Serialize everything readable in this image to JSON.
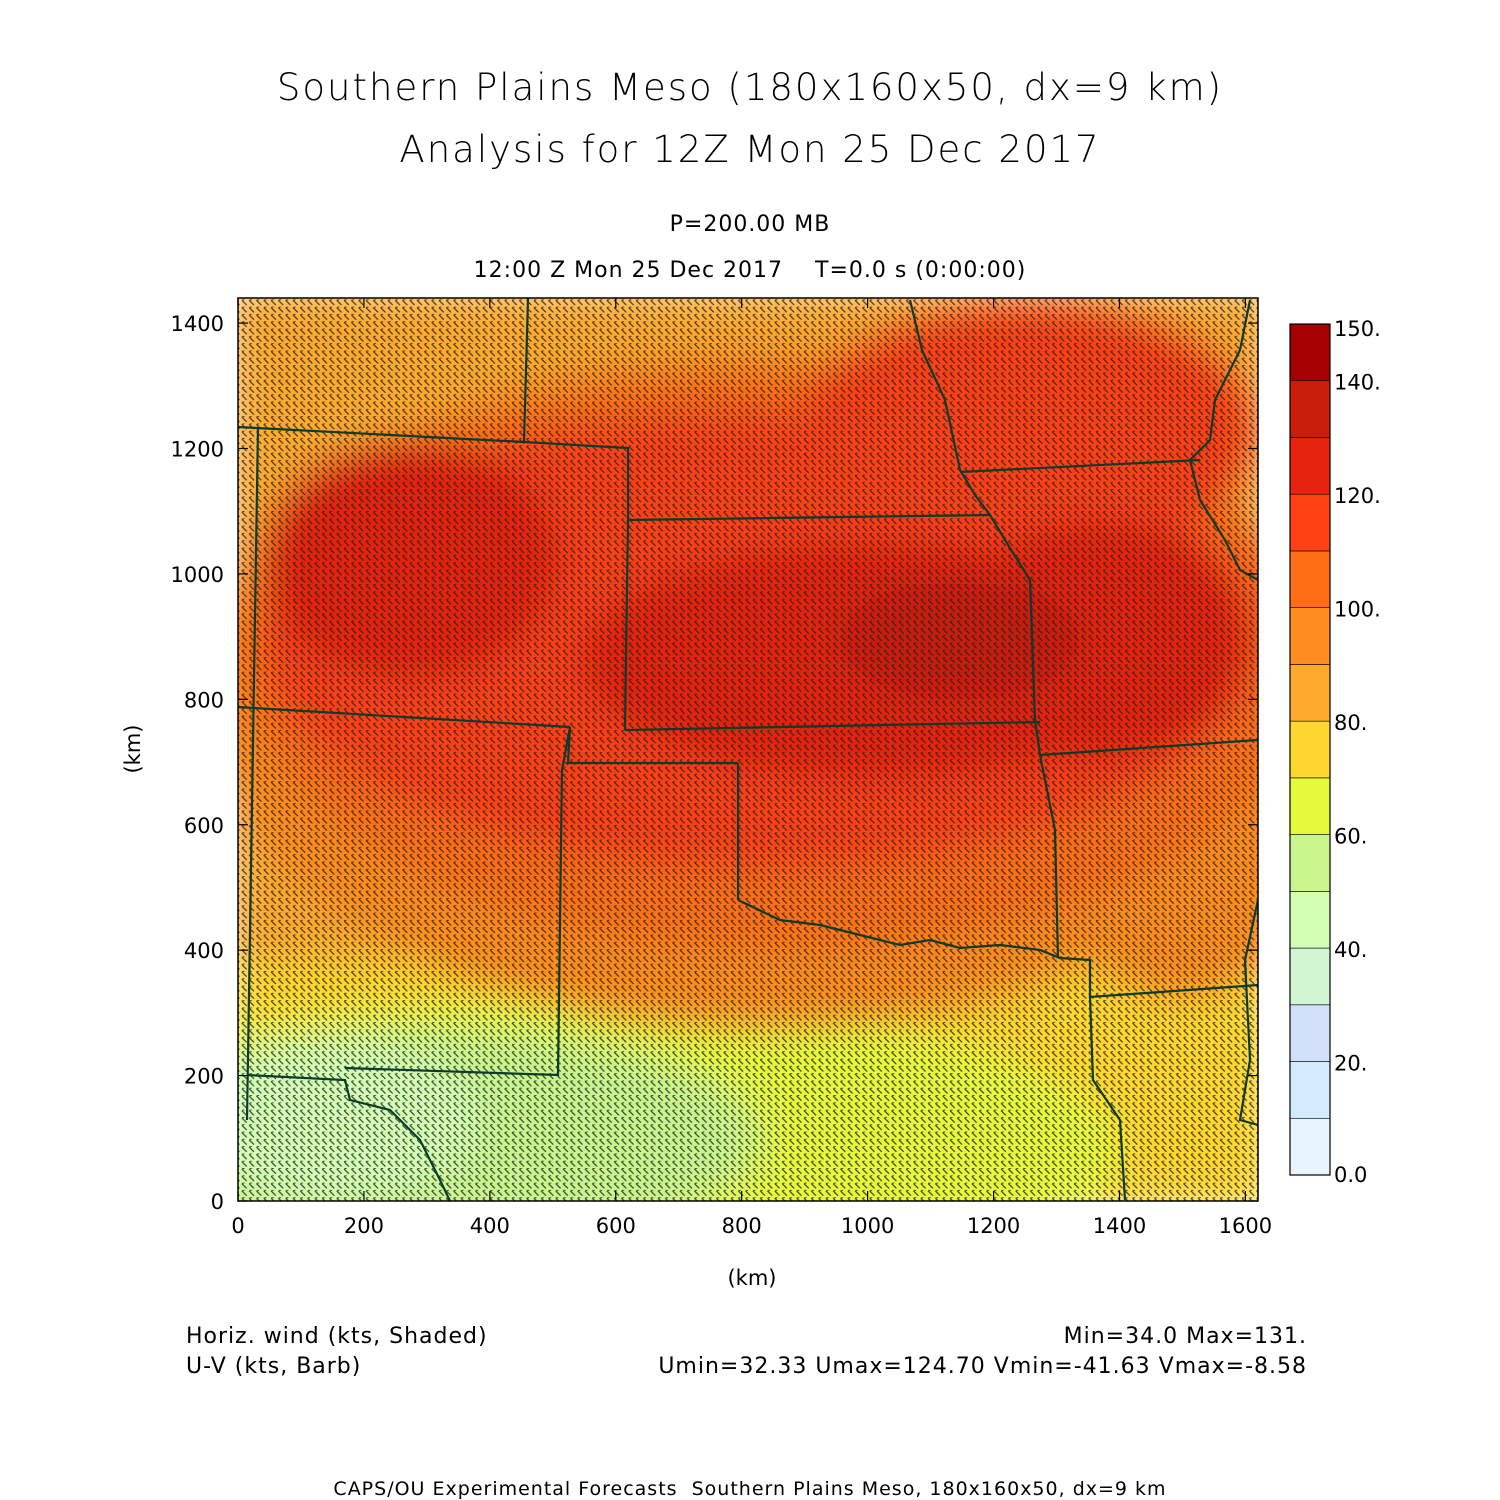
{
  "title": {
    "line1": "Southern Plains Meso (180x160x50, dx=9 km)",
    "line2": "Analysis for 12Z Mon 25 Dec 2017"
  },
  "subtitle": {
    "level": "P=200.00 MB",
    "time": "12:00 Z Mon 25 Dec 2017    T=0.0 s (0:00:00)"
  },
  "chart_data": {
    "type": "heatmap",
    "x_axis": {
      "label": "(km)",
      "range": [
        0,
        1620
      ],
      "ticks": [
        "0",
        "200",
        "400",
        "600",
        "800",
        "1000",
        "1200",
        "1400",
        "1600"
      ]
    },
    "y_axis": {
      "label": "(km)",
      "range": [
        0,
        1440
      ],
      "ticks": [
        "0",
        "200",
        "400",
        "600",
        "800",
        "1000",
        "1200",
        "1400"
      ]
    },
    "field": "Horiz. wind (kts, Shaded)",
    "overlay": "U-V (kts, Barb)",
    "wind_maximum": {
      "x": 1100,
      "y": 900,
      "value": 131
    },
    "secondary_maximum": {
      "x": 250,
      "y": 1050,
      "value": 121
    },
    "colorbar": {
      "levels": [
        0,
        10,
        20,
        30,
        40,
        50,
        60,
        70,
        80,
        90,
        100,
        110,
        120,
        130,
        140,
        150
      ],
      "labels": [
        "0.0",
        "20.",
        "40.",
        "60.",
        "80.",
        "100.",
        "120.",
        "140.",
        "150."
      ],
      "label_values": [
        0,
        20,
        40,
        60,
        80,
        100,
        120,
        140,
        150
      ],
      "colors": [
        "#e6f5ff",
        "#d2ebff",
        "#d2e0fa",
        "#d2f5d2",
        "#d2ffb4",
        "#c8f58c",
        "#e6fa3c",
        "#ffd72d",
        "#ffaa2d",
        "#ff8c1e",
        "#ff6e14",
        "#ff4114",
        "#e6230f",
        "#c81e0a",
        "#a50000"
      ]
    }
  },
  "stats": {
    "min_max": "Min=34.0 Max=131.",
    "uv": "Umin=32.33 Umax=124.70 Vmin=-41.63 Vmax=-8.58"
  },
  "footer": {
    "field": "Horiz. wind (kts, Shaded)",
    "overlay": "U-V (kts, Barb)",
    "credit": "CAPS/OU Experimental Forecasts  Southern Plains Meso, 180x160x50, dx=9 km"
  },
  "map": {
    "border_color": "#0d3a2a"
  }
}
